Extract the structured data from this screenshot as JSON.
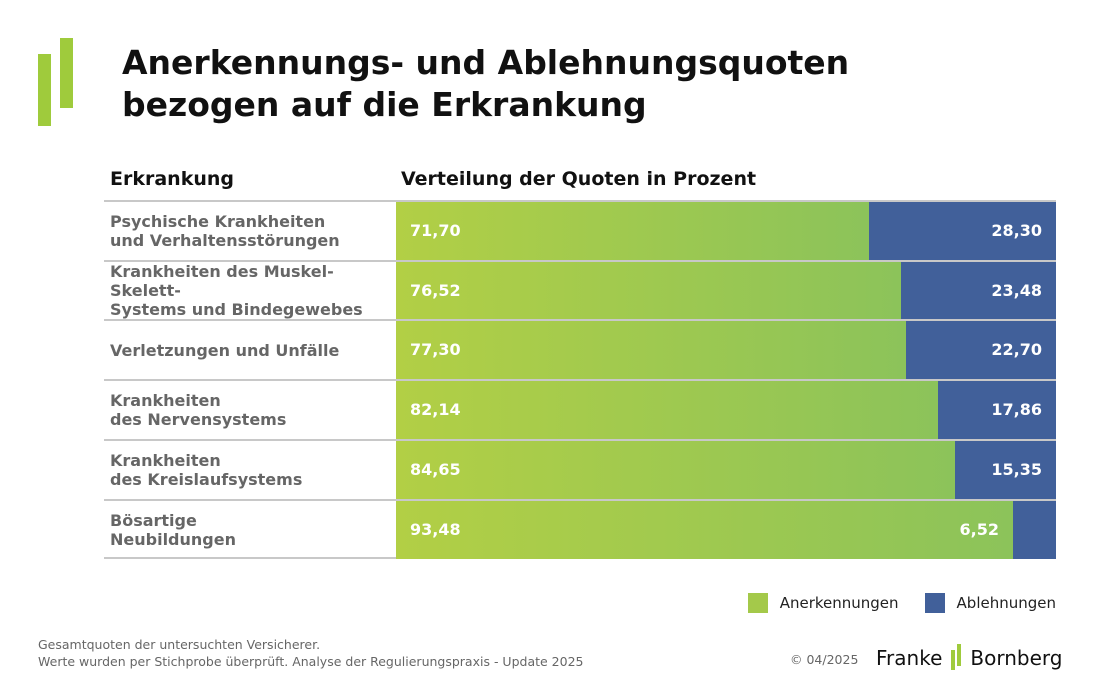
{
  "title_line1": "Anerkennungs- und Ablehnungsquoten",
  "title_line2": "bezogen auf die Erkrankung",
  "col_head_category": "Erkrankung",
  "col_head_values": "Verteilung der Quoten in Prozent",
  "colors": {
    "accent": "#9fcb3c",
    "anerkennungen": "#a4c94a",
    "ablehnungen": "#41609a"
  },
  "chart_data": {
    "type": "bar",
    "orientation": "horizontal",
    "stacked": true,
    "xlim": [
      0,
      100
    ],
    "categories": [
      "Psychische Krankheiten\nund Verhaltensstörungen",
      "Krankheiten des Muskel-Skelett-\nSystems und Bindegewebes",
      "Verletzungen und Unfälle",
      "Krankheiten\ndes Nervensystems",
      "Krankheiten\ndes Kreislaufsystems",
      "Bösartige\nNeubildungen"
    ],
    "series": [
      {
        "name": "Anerkennungen",
        "values": [
          71.7,
          76.52,
          77.3,
          82.14,
          84.65,
          93.48
        ],
        "labels": [
          "71,70",
          "76,52",
          "77,30",
          "82,14",
          "84,65",
          "93,48"
        ]
      },
      {
        "name": "Ablehnungen",
        "values": [
          28.3,
          23.48,
          22.7,
          17.86,
          15.35,
          6.52
        ],
        "labels": [
          "28,30",
          "23,48",
          "22,70",
          "17,86",
          "15,35",
          "6,52"
        ]
      }
    ],
    "legend": "bottom-right"
  },
  "legend": {
    "anerkennungen": "Anerkennungen",
    "ablehnungen": "Ablehnungen"
  },
  "footnote_line1": "Gesamtquoten der untersuchten Versicherer.",
  "footnote_line2": "Werte wurden per Stichprobe überprüft. Analyse der Regulierungspraxis - Update 2025",
  "copyright": "© 04/2025",
  "brand_left": "Franke",
  "brand_right": "Bornberg"
}
